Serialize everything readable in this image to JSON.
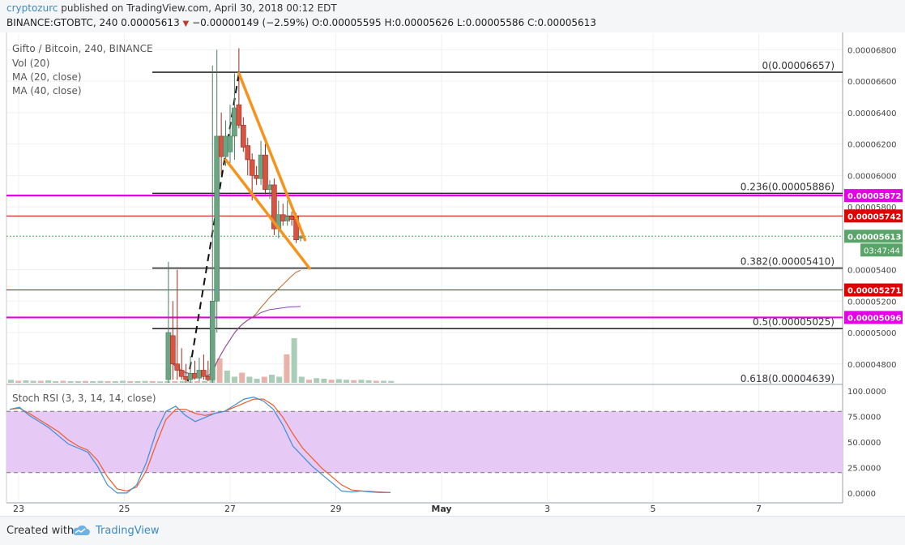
{
  "header": {
    "author": "cryptozurc",
    "published_text": " published on TradingView.com, April 30, 2018 00:12 EDT",
    "symbol_line": "BINANCE:GTOBTC, 240  0.00005613",
    "change_text": "−0.00000149 (−2.59%)",
    "ohlc_o": "O:0.00005595",
    "ohlc_h": "H:0.00005626",
    "ohlc_l": "L:0.00005586",
    "ohlc_c": "C:0.00005613"
  },
  "legend": {
    "title": "Gifto / Bitcoin, 240, BINANCE",
    "vol": "Vol (20)",
    "ma20": "MA (20, close)",
    "ma40": "MA (40, close)",
    "stoch": "Stoch RSI (3, 3, 14, 14, close)"
  },
  "footer": {
    "created_with": "Created with",
    "brand": "TradingView"
  },
  "colors": {
    "up": "#6ba583",
    "down": "#d75442",
    "fib": "#2b2b2b",
    "magenta": "#e600e6",
    "red_line": "#cc0000",
    "orange": "#f7931a",
    "stoch_k": "#3c8fd9",
    "stoch_d": "#f05a28"
  },
  "chart_data": [
    {
      "type": "candlestick",
      "title": "Gifto / Bitcoin, 240, BINANCE",
      "ylim": [
        4.68e-05,
        6.9e-05
      ],
      "x_ticks": [
        {
          "label": "23",
          "t": 0
        },
        {
          "label": "25",
          "t": 12
        },
        {
          "label": "27",
          "t": 24
        },
        {
          "label": "29",
          "t": 36
        },
        {
          "label": "May",
          "t": 48
        },
        {
          "label": "3",
          "t": 60
        },
        {
          "label": "5",
          "t": 72
        },
        {
          "label": "7",
          "t": 84
        }
      ],
      "y_ticks": [
        "0.00006800",
        "0.00006600",
        "0.00006400",
        "0.00006200",
        "0.00006000",
        "0.00005800",
        "0.00005600",
        "0.00005400",
        "0.00005200",
        "0.00005000",
        "0.00004800"
      ],
      "candles": [
        {
          "t": 17.0,
          "o": 4.7e-05,
          "h": 5.45e-05,
          "l": 4.68e-05,
          "c": 5e-05
        },
        {
          "t": 17.5,
          "o": 4.98e-05,
          "h": 5.2e-05,
          "l": 4.7e-05,
          "c": 4.8e-05
        },
        {
          "t": 18.0,
          "o": 4.8e-05,
          "h": 5.4e-05,
          "l": 4.7e-05,
          "c": 4.76e-05
        },
        {
          "t": 18.5,
          "o": 4.76e-05,
          "h": 4.9e-05,
          "l": 4.7e-05,
          "c": 4.72e-05
        },
        {
          "t": 19.0,
          "o": 4.72e-05,
          "h": 4.8e-05,
          "l": 4.68e-05,
          "c": 4.7e-05
        },
        {
          "t": 19.5,
          "o": 4.7e-05,
          "h": 4.85e-05,
          "l": 4.68e-05,
          "c": 4.74e-05
        },
        {
          "t": 20.0,
          "o": 4.74e-05,
          "h": 4.82e-05,
          "l": 4.7e-05,
          "c": 4.71e-05
        },
        {
          "t": 20.5,
          "o": 4.71e-05,
          "h": 4.84e-05,
          "l": 4.69e-05,
          "c": 4.76e-05
        },
        {
          "t": 21.0,
          "o": 4.76e-05,
          "h": 4.86e-05,
          "l": 4.7e-05,
          "c": 4.72e-05
        },
        {
          "t": 21.5,
          "o": 4.72e-05,
          "h": 4.82e-05,
          "l": 4.69e-05,
          "c": 4.7e-05
        },
        {
          "t": 22.0,
          "o": 4.7e-05,
          "h": 6.7e-05,
          "l": 4.68e-05,
          "c": 5.2e-05
        },
        {
          "t": 22.5,
          "o": 5.2e-05,
          "h": 6.8e-05,
          "l": 5e-05,
          "c": 6.25e-05
        },
        {
          "t": 23.0,
          "o": 6.25e-05,
          "h": 6.4e-05,
          "l": 6e-05,
          "c": 6.12e-05
        },
        {
          "t": 23.5,
          "o": 6.12e-05,
          "h": 6.35e-05,
          "l": 6.06e-05,
          "c": 6.25e-05
        },
        {
          "t": 24.0,
          "o": 6.15e-05,
          "h": 6.45e-05,
          "l": 6.08e-05,
          "c": 6.25e-05
        },
        {
          "t": 24.5,
          "o": 6.25e-05,
          "h": 6.65e-05,
          "l": 6.1e-05,
          "c": 6.43e-05
        },
        {
          "t": 25.0,
          "o": 6.45e-05,
          "h": 6.81e-05,
          "l": 6.3e-05,
          "c": 6.32e-05
        },
        {
          "t": 25.5,
          "o": 6.32e-05,
          "h": 6.37e-05,
          "l": 6.15e-05,
          "c": 6.18e-05
        },
        {
          "t": 26.0,
          "o": 6.19e-05,
          "h": 6.24e-05,
          "l": 6e-05,
          "c": 6.1e-05
        },
        {
          "t": 26.5,
          "o": 6.1e-05,
          "h": 6.14e-05,
          "l": 5.84e-05,
          "c": 6e-05
        },
        {
          "t": 27.0,
          "o": 6e-05,
          "h": 6.06e-05,
          "l": 5.94e-05,
          "c": 5.98e-05
        },
        {
          "t": 27.5,
          "o": 5.98e-05,
          "h": 6.22e-05,
          "l": 5.94e-05,
          "c": 6.13e-05
        },
        {
          "t": 28.0,
          "o": 6.13e-05,
          "h": 6.2e-05,
          "l": 5.88e-05,
          "c": 5.91e-05
        },
        {
          "t": 28.5,
          "o": 5.91e-05,
          "h": 5.97e-05,
          "l": 5.85e-05,
          "c": 5.94e-05
        },
        {
          "t": 29.0,
          "o": 5.94e-05,
          "h": 5.98e-05,
          "l": 5.62e-05,
          "c": 5.66e-05
        },
        {
          "t": 29.5,
          "o": 5.66e-05,
          "h": 5.84e-05,
          "l": 5.6e-05,
          "c": 5.75e-05
        },
        {
          "t": 30.0,
          "o": 5.75e-05,
          "h": 5.82e-05,
          "l": 5.68e-05,
          "c": 5.71e-05
        },
        {
          "t": 30.5,
          "o": 5.71e-05,
          "h": 5.84e-05,
          "l": 5.68e-05,
          "c": 5.74e-05
        },
        {
          "t": 31.0,
          "o": 5.74e-05,
          "h": 5.77e-05,
          "l": 5.68e-05,
          "c": 5.72e-05
        },
        {
          "t": 31.5,
          "o": 5.74e-05,
          "h": 5.76e-05,
          "l": 5.57e-05,
          "c": 5.59e-05
        },
        {
          "t": 32.0,
          "o": 5.6e-05,
          "h": 5.62e-05,
          "l": 5.58e-05,
          "c": 5.61e-05
        }
      ],
      "fib_levels": [
        {
          "label": "0(0.00006657)",
          "value": 6.657e-05
        },
        {
          "label": "0.236(0.00005886)",
          "value": 5.886e-05
        },
        {
          "label": "0.382(0.00005410)",
          "value": 5.41e-05
        },
        {
          "label": "0.5(0.00005025)",
          "value": 5.025e-05
        },
        {
          "label": "0.618(0.00004639)",
          "value": 4.639e-05
        }
      ],
      "magenta_lines": [
        {
          "label": "0.00005872",
          "value": 5.872e-05
        },
        {
          "label": "0.00005096",
          "value": 5.096e-05
        }
      ],
      "red_lines": [
        {
          "label": "0.00005742",
          "value": 5.742e-05
        },
        {
          "label": "0.00005271",
          "value": 5.271e-05
        }
      ],
      "last_price": {
        "label": "0.00005613",
        "value": 5.613e-05,
        "countdown": "03:47:44"
      },
      "wedge": {
        "upper": [
          {
            "t": 25.0,
            "v": 6.65e-05
          },
          {
            "t": 32.5,
            "v": 5.59e-05
          }
        ],
        "lower": [
          {
            "t": 23.5,
            "v": 6.1e-05
          },
          {
            "t": 33.0,
            "v": 5.41e-05
          }
        ]
      },
      "volume": [
        1.5,
        1.0,
        1.2,
        1.0,
        1.0,
        1.2,
        0.8,
        1.0,
        0.8,
        0.8,
        0.9,
        0.8,
        0.9,
        0.8,
        0.8,
        1.0,
        0.8,
        0.8,
        0.9,
        0.8,
        0.7,
        0.8,
        0.8,
        0.9,
        0.7,
        0.8,
        0.9,
        7,
        12,
        6,
        3,
        5,
        3,
        2,
        3,
        4,
        3,
        14,
        22,
        3,
        1.5,
        2.3,
        2.0,
        1.5,
        1.8,
        1.5,
        1.3,
        1.5,
        1.2,
        1.0,
        1.0,
        0.9
      ]
    },
    {
      "type": "line",
      "title": "Stoch RSI (3, 3, 14, 14, close)",
      "ylim": [
        -8,
        104
      ],
      "y_ticks": [
        "100.0000",
        "75.0000",
        "50.0000",
        "25.0000",
        "0.0000"
      ],
      "bands": [
        20,
        80
      ],
      "series": [
        {
          "name": "K",
          "values": [
            82,
            84,
            76,
            70,
            64,
            56,
            48,
            44,
            40,
            26,
            8,
            0,
            0,
            8,
            30,
            60,
            80,
            85,
            76,
            70,
            74,
            78,
            80,
            86,
            92,
            94,
            90,
            82,
            66,
            46,
            36,
            26,
            18,
            10,
            2,
            1,
            2,
            1,
            0.5,
            0.5
          ]
        },
        {
          "name": "D",
          "values": [
            82,
            83,
            78,
            72,
            66,
            60,
            52,
            46,
            42,
            32,
            16,
            4,
            2,
            6,
            22,
            48,
            72,
            82,
            82,
            78,
            76,
            78,
            80,
            84,
            88,
            92,
            92,
            86,
            74,
            58,
            44,
            34,
            24,
            16,
            8,
            3,
            2,
            1.5,
            1,
            0.6
          ]
        }
      ]
    }
  ]
}
